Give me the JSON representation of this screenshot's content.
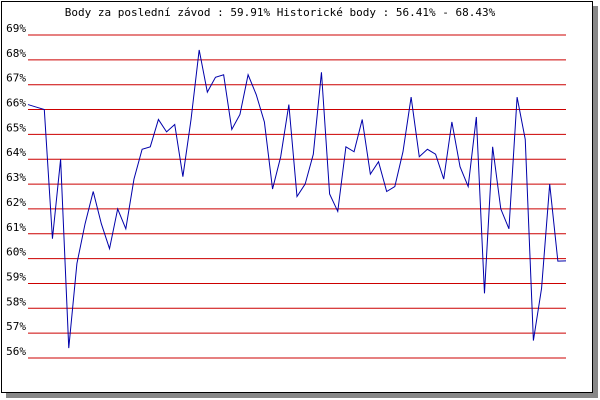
{
  "chart_data": {
    "type": "line",
    "title": "Body za poslední závod : 59.91%  Historické body : 56.41% - 68.43%",
    "series": [
      {
        "color": "#0000aa",
        "values": [
          66.2,
          66.1,
          66.0,
          60.8,
          64.0,
          56.4,
          59.8,
          61.4,
          62.7,
          61.4,
          60.4,
          62.0,
          61.2,
          63.2,
          64.4,
          64.5,
          65.6,
          65.1,
          65.4,
          63.3,
          65.6,
          68.4,
          66.7,
          67.3,
          67.4,
          65.2,
          65.8,
          67.4,
          66.6,
          65.5,
          62.8,
          64.1,
          66.2,
          62.5,
          63.0,
          64.2,
          67.5,
          62.6,
          61.9,
          64.5,
          64.3,
          65.6,
          63.4,
          63.9,
          62.7,
          62.9,
          64.3,
          66.5,
          64.1,
          64.4,
          64.2,
          63.2,
          65.5,
          63.7,
          62.9,
          65.7,
          58.6,
          64.5,
          62.0,
          61.2,
          66.5,
          64.8,
          56.7,
          58.8,
          63.0,
          59.9,
          59.91
        ]
      }
    ],
    "ylim": [
      56,
      69
    ],
    "yticks": [
      {
        "value": 56,
        "label": "56%"
      },
      {
        "value": 57,
        "label": "57%"
      },
      {
        "value": 58,
        "label": "58%"
      },
      {
        "value": 59,
        "label": "59%"
      },
      {
        "value": 60,
        "label": "60%"
      },
      {
        "value": 61,
        "label": "61%"
      },
      {
        "value": 62,
        "label": "62%"
      },
      {
        "value": 63,
        "label": "63%"
      },
      {
        "value": 64,
        "label": "64%"
      },
      {
        "value": 65,
        "label": "65%"
      },
      {
        "value": 66,
        "label": "66%"
      },
      {
        "value": 67,
        "label": "67%"
      },
      {
        "value": 68,
        "label": "68%"
      },
      {
        "value": 69,
        "label": "69%"
      }
    ],
    "grid": true,
    "grid_color": "#cc0000"
  }
}
